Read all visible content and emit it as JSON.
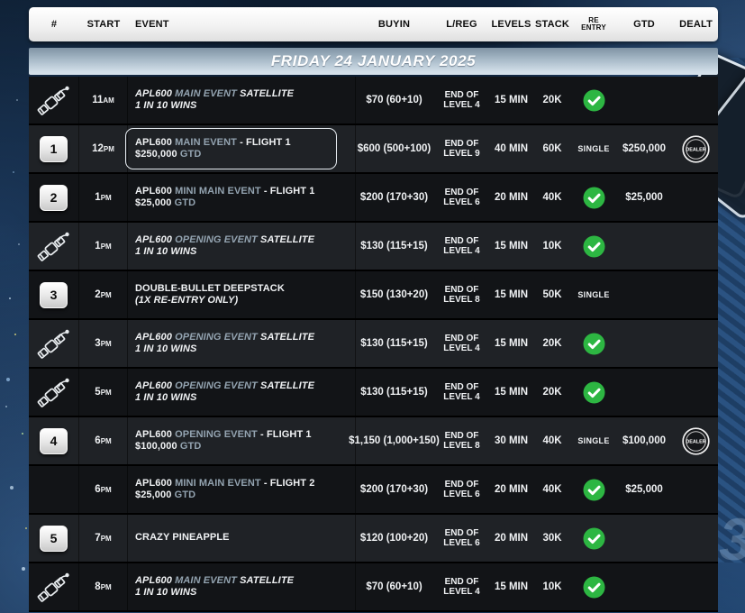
{
  "banner": {
    "date_label": "FRIDAY 24 JANUARY 2025"
  },
  "header": {
    "num": "#",
    "start": "START",
    "event": "EVENT",
    "buyin": "BUYIN",
    "lreg": "L/REG",
    "levels": "LEVELS",
    "stack": "STACK",
    "reentry_line1": "RE",
    "reentry_line2": "ENTRY",
    "gtd": "GTD",
    "dealt": "DEALT"
  },
  "colors": {
    "accent_text": "#93a3b0",
    "check_green": "#2db642",
    "row_dark": "#121417",
    "row_light": "#1f2226",
    "banner_top": "#7f93a4",
    "banner_bottom": "#d8e3ec"
  },
  "decor": {
    "corner_numeral": "3"
  },
  "icons": {
    "satellite": "satellite-icon",
    "check": "check-circle-icon",
    "dealer": "dealer-button-icon"
  },
  "reentry_single_label": "SINGLE",
  "rows": [
    {
      "num": {
        "kind": "satellite"
      },
      "start": {
        "hour": "11",
        "meridiem": "AM"
      },
      "event": {
        "boxed": false,
        "lines": [
          {
            "italic": true,
            "segments": [
              {
                "text": "APL600 ",
                "accent": false
              },
              {
                "text": "MAIN EVENT",
                "accent": true
              },
              {
                "text": " SATELLITE",
                "accent": false
              }
            ]
          },
          {
            "italic": true,
            "segments": [
              {
                "text": "1 IN 10 WINS",
                "accent": false
              }
            ]
          }
        ]
      },
      "buyin": "$70 (60+10)",
      "lreg": [
        "END OF",
        "LEVEL 4"
      ],
      "levels": "15 MIN",
      "stack": "20K",
      "reentry": {
        "kind": "check"
      },
      "gtd": "",
      "dealt": false
    },
    {
      "num": {
        "kind": "badge",
        "value": "1"
      },
      "start": {
        "hour": "12",
        "meridiem": "PM"
      },
      "event": {
        "boxed": true,
        "lines": [
          {
            "italic": false,
            "segments": [
              {
                "text": "APL600 ",
                "accent": false
              },
              {
                "text": "MAIN EVENT",
                "accent": true
              },
              {
                "text": " - FLIGHT 1",
                "accent": false
              }
            ]
          },
          {
            "italic": false,
            "segments": [
              {
                "text": "$250,000 ",
                "accent": false
              },
              {
                "text": "GTD",
                "accent": true
              }
            ]
          }
        ]
      },
      "buyin": "$600 (500+100)",
      "lreg": [
        "END OF",
        "LEVEL 9"
      ],
      "levels": "40 MIN",
      "stack": "60K",
      "reentry": {
        "kind": "text",
        "value": "SINGLE"
      },
      "gtd": "$250,000",
      "dealt": true
    },
    {
      "num": {
        "kind": "badge",
        "value": "2"
      },
      "start": {
        "hour": "1",
        "meridiem": "PM"
      },
      "event": {
        "boxed": false,
        "lines": [
          {
            "italic": false,
            "segments": [
              {
                "text": "APL600 ",
                "accent": false
              },
              {
                "text": "MINI MAIN EVENT",
                "accent": true
              },
              {
                "text": " - FLIGHT 1",
                "accent": false
              }
            ]
          },
          {
            "italic": false,
            "segments": [
              {
                "text": "$25,000 ",
                "accent": false
              },
              {
                "text": "GTD",
                "accent": true
              }
            ]
          }
        ]
      },
      "buyin": "$200 (170+30)",
      "lreg": [
        "END OF",
        "LEVEL 6"
      ],
      "levels": "20 MIN",
      "stack": "40K",
      "reentry": {
        "kind": "check"
      },
      "gtd": "$25,000",
      "dealt": false
    },
    {
      "num": {
        "kind": "satellite"
      },
      "start": {
        "hour": "1",
        "meridiem": "PM"
      },
      "event": {
        "boxed": false,
        "lines": [
          {
            "italic": true,
            "segments": [
              {
                "text": "APL600 ",
                "accent": false
              },
              {
                "text": "OPENING EVENT",
                "accent": true
              },
              {
                "text": " SATELLITE",
                "accent": false
              }
            ]
          },
          {
            "italic": true,
            "segments": [
              {
                "text": "1 IN 10 WINS",
                "accent": false
              }
            ]
          }
        ]
      },
      "buyin": "$130 (115+15)",
      "lreg": [
        "END OF",
        "LEVEL 4"
      ],
      "levels": "15 MIN",
      "stack": "10K",
      "reentry": {
        "kind": "check"
      },
      "gtd": "",
      "dealt": false
    },
    {
      "num": {
        "kind": "badge",
        "value": "3"
      },
      "start": {
        "hour": "2",
        "meridiem": "PM"
      },
      "event": {
        "boxed": false,
        "lines": [
          {
            "italic": false,
            "segments": [
              {
                "text": "DOUBLE-BULLET DEEPSTACK",
                "accent": false
              }
            ]
          },
          {
            "italic": true,
            "segments": [
              {
                "text": "(1X RE-ENTRY ONLY)",
                "accent": false
              }
            ]
          }
        ]
      },
      "buyin": "$150 (130+20)",
      "lreg": [
        "END OF",
        "LEVEL 8"
      ],
      "levels": "15 MIN",
      "stack": "50K",
      "reentry": {
        "kind": "text",
        "value": "SINGLE"
      },
      "gtd": "",
      "dealt": false
    },
    {
      "num": {
        "kind": "satellite"
      },
      "start": {
        "hour": "3",
        "meridiem": "PM"
      },
      "event": {
        "boxed": false,
        "lines": [
          {
            "italic": true,
            "segments": [
              {
                "text": "APL600 ",
                "accent": false
              },
              {
                "text": "OPENING EVENT",
                "accent": true
              },
              {
                "text": " SATELLITE",
                "accent": false
              }
            ]
          },
          {
            "italic": true,
            "segments": [
              {
                "text": "1 IN 10 WINS",
                "accent": false
              }
            ]
          }
        ]
      },
      "buyin": "$130 (115+15)",
      "lreg": [
        "END OF",
        "LEVEL 4"
      ],
      "levels": "15 MIN",
      "stack": "20K",
      "reentry": {
        "kind": "check"
      },
      "gtd": "",
      "dealt": false
    },
    {
      "num": {
        "kind": "satellite"
      },
      "start": {
        "hour": "5",
        "meridiem": "PM"
      },
      "event": {
        "boxed": false,
        "lines": [
          {
            "italic": true,
            "segments": [
              {
                "text": "APL600 ",
                "accent": false
              },
              {
                "text": "OPENING EVENT",
                "accent": true
              },
              {
                "text": " SATELLITE",
                "accent": false
              }
            ]
          },
          {
            "italic": true,
            "segments": [
              {
                "text": "1 IN 10 WINS",
                "accent": false
              }
            ]
          }
        ]
      },
      "buyin": "$130 (115+15)",
      "lreg": [
        "END OF",
        "LEVEL 4"
      ],
      "levels": "15 MIN",
      "stack": "20K",
      "reentry": {
        "kind": "check"
      },
      "gtd": "",
      "dealt": false
    },
    {
      "num": {
        "kind": "badge",
        "value": "4"
      },
      "start": {
        "hour": "6",
        "meridiem": "PM"
      },
      "event": {
        "boxed": false,
        "lines": [
          {
            "italic": false,
            "segments": [
              {
                "text": "APL600 ",
                "accent": false
              },
              {
                "text": "OPENING EVENT",
                "accent": true
              },
              {
                "text": " - FLIGHT 1",
                "accent": false
              }
            ]
          },
          {
            "italic": false,
            "segments": [
              {
                "text": "$100,000 ",
                "accent": false
              },
              {
                "text": "GTD",
                "accent": true
              }
            ]
          }
        ]
      },
      "buyin": "$1,150 (1,000+150)",
      "lreg": [
        "END OF",
        "LEVEL 8"
      ],
      "levels": "30 MIN",
      "stack": "40K",
      "reentry": {
        "kind": "text",
        "value": "SINGLE"
      },
      "gtd": "$100,000",
      "dealt": true
    },
    {
      "num": {
        "kind": "none"
      },
      "start": {
        "hour": "6",
        "meridiem": "PM"
      },
      "event": {
        "boxed": false,
        "lines": [
          {
            "italic": false,
            "segments": [
              {
                "text": "APL600 ",
                "accent": false
              },
              {
                "text": "MINI MAIN EVENT",
                "accent": true
              },
              {
                "text": " - FLIGHT 2",
                "accent": false
              }
            ]
          },
          {
            "italic": false,
            "segments": [
              {
                "text": "$25,000 ",
                "accent": false
              },
              {
                "text": "GTD",
                "accent": true
              }
            ]
          }
        ]
      },
      "buyin": "$200 (170+30)",
      "lreg": [
        "END OF",
        "LEVEL 6"
      ],
      "levels": "20 MIN",
      "stack": "40K",
      "reentry": {
        "kind": "check"
      },
      "gtd": "$25,000",
      "dealt": false
    },
    {
      "num": {
        "kind": "badge",
        "value": "5"
      },
      "start": {
        "hour": "7",
        "meridiem": "PM"
      },
      "event": {
        "boxed": false,
        "lines": [
          {
            "italic": false,
            "segments": [
              {
                "text": "CRAZY PINEAPPLE",
                "accent": false
              }
            ]
          }
        ]
      },
      "buyin": "$120 (100+20)",
      "lreg": [
        "END OF",
        "LEVEL 6"
      ],
      "levels": "20 MIN",
      "stack": "30K",
      "reentry": {
        "kind": "check"
      },
      "gtd": "",
      "dealt": false
    },
    {
      "num": {
        "kind": "satellite"
      },
      "start": {
        "hour": "8",
        "meridiem": "PM"
      },
      "event": {
        "boxed": false,
        "lines": [
          {
            "italic": true,
            "segments": [
              {
                "text": "APL600 ",
                "accent": false
              },
              {
                "text": "MAIN EVENT",
                "accent": true
              },
              {
                "text": " SATELLITE",
                "accent": false
              }
            ]
          },
          {
            "italic": true,
            "segments": [
              {
                "text": "1 IN 10 WINS",
                "accent": false
              }
            ]
          }
        ]
      },
      "buyin": "$70 (60+10)",
      "lreg": [
        "END OF",
        "LEVEL 4"
      ],
      "levels": "15 MIN",
      "stack": "10K",
      "reentry": {
        "kind": "check"
      },
      "gtd": "",
      "dealt": false
    }
  ]
}
